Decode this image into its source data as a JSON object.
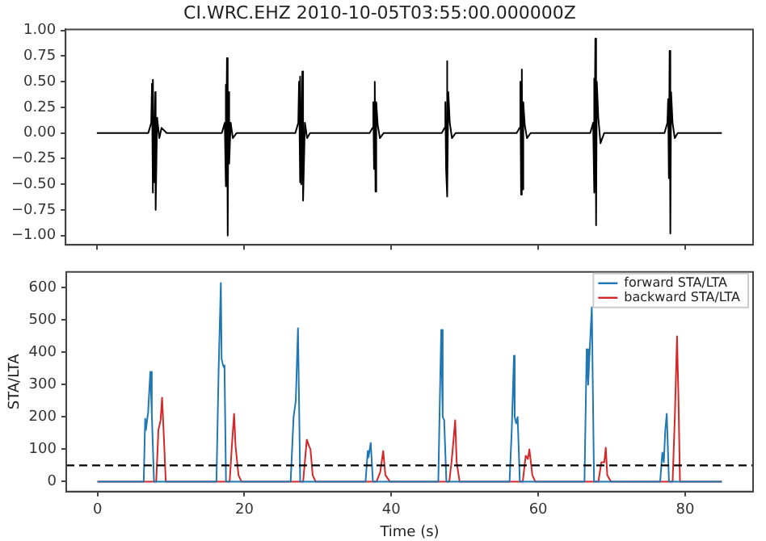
{
  "chart_data": [
    {
      "type": "line",
      "title": "CI.WRC.EHZ 2010-10-05T03:55:00.000000Z",
      "color": "#000000",
      "x": [
        0,
        7.0,
        7.4,
        7.5,
        7.55,
        7.7,
        7.8,
        7.95,
        8.0,
        8.2,
        8.5,
        8.8,
        9.5,
        17.0,
        17.4,
        17.5,
        17.6,
        17.7,
        17.8,
        17.9,
        18.0,
        18.2,
        18.5,
        19.0,
        27.0,
        27.4,
        27.5,
        27.6,
        27.7,
        27.8,
        27.95,
        28.05,
        28.3,
        28.6,
        29.0,
        37.1,
        37.5,
        37.6,
        37.7,
        37.8,
        37.9,
        38.0,
        38.2,
        38.5,
        39.0,
        46.9,
        47.3,
        47.4,
        47.5,
        47.6,
        47.7,
        47.8,
        48.0,
        48.3,
        48.8,
        57.1,
        57.5,
        57.6,
        57.7,
        57.8,
        57.9,
        58.0,
        58.2,
        58.5,
        59.0,
        67.1,
        67.5,
        67.6,
        67.7,
        67.8,
        67.9,
        68.0,
        68.2,
        68.5,
        69.0,
        77.2,
        77.6,
        77.7,
        77.8,
        77.9,
        78.0,
        78.1,
        78.3,
        78.6,
        79.0,
        85
      ],
      "values": [
        0,
        0.0,
        0.1,
        0.48,
        -0.58,
        0.52,
        -0.48,
        0.4,
        -0.75,
        0.15,
        -0.05,
        0.05,
        0.0,
        0.0,
        0.1,
        0.47,
        -0.52,
        0.73,
        -1.0,
        0.4,
        -0.3,
        0.1,
        -0.05,
        0.0,
        0.0,
        0.1,
        0.5,
        -0.48,
        0.55,
        -0.5,
        0.6,
        -0.66,
        0.1,
        -0.05,
        0.0,
        0.0,
        0.05,
        0.3,
        -0.35,
        0.5,
        -0.57,
        0.3,
        0.08,
        -0.05,
        0.0,
        0.0,
        0.05,
        0.3,
        -0.35,
        0.7,
        -0.62,
        0.4,
        0.1,
        -0.05,
        0.0,
        0.0,
        0.05,
        0.5,
        -0.6,
        0.62,
        -0.55,
        0.3,
        0.08,
        -0.05,
        0.0,
        0.0,
        0.1,
        0.53,
        -0.58,
        0.92,
        -0.9,
        0.5,
        0.15,
        -0.1,
        0.0,
        0.0,
        0.1,
        0.33,
        -0.44,
        0.8,
        -0.98,
        0.4,
        0.1,
        -0.05,
        0.0,
        0.0
      ],
      "xlim": [
        -4.25,
        89.25
      ],
      "xticks": [
        0,
        20,
        40,
        60,
        80
      ],
      "ylim": [
        -1.09,
        1.01
      ],
      "yticks": [
        {
          "value": -1,
          "label": "−1.00"
        },
        {
          "value": -0.75,
          "label": "−0.75"
        },
        {
          "value": -0.5,
          "label": "−0.50"
        },
        {
          "value": -0.25,
          "label": "−0.25"
        },
        {
          "value": 0,
          "label": "0.00"
        },
        {
          "value": 0.25,
          "label": "0.25"
        },
        {
          "value": 0.5,
          "label": "0.50"
        },
        {
          "value": 0.75,
          "label": "0.75"
        },
        {
          "value": 1,
          "label": "1.00"
        }
      ],
      "tick_labels": "y",
      "grid": false
    },
    {
      "type": "line",
      "xlabel": "Time (s)",
      "ylabel": "STA/LTA",
      "series": [
        {
          "name": "forward STA/LTA",
          "color": "#1f77b4",
          "x": [
            0,
            6.3,
            6.5,
            6.6,
            6.9,
            7.2,
            7.4,
            7.7,
            16.2,
            16.5,
            16.8,
            16.9,
            17.1,
            17.3,
            17.5,
            26.3,
            26.7,
            27.0,
            27.3,
            27.6,
            36.5,
            36.8,
            36.9,
            37.2,
            37.5,
            46.4,
            46.6,
            46.8,
            47.0,
            47.2,
            47.5,
            56.1,
            56.4,
            56.7,
            56.8,
            57.0,
            57.2,
            57.5,
            66.3,
            66.6,
            66.8,
            67.0,
            67.3,
            67.6,
            76.6,
            76.9,
            77.1,
            77.3,
            77.5,
            77.8,
            85
          ],
          "values": [
            0,
            0,
            195,
            160,
            215,
            340,
            210,
            0,
            0,
            350,
            615,
            380,
            360,
            350,
            0,
            0,
            200,
            250,
            475,
            0,
            0,
            95,
            75,
            120,
            0,
            0,
            240,
            470,
            200,
            190,
            0,
            0,
            160,
            390,
            200,
            180,
            200,
            0,
            0,
            410,
            300,
            400,
            540,
            0,
            0,
            90,
            60,
            160,
            210,
            0,
            0
          ]
        },
        {
          "name": "backward STA/LTA",
          "color": "#d62728",
          "x": [
            0,
            8.0,
            8.3,
            8.6,
            8.8,
            9.0,
            9.3,
            18.0,
            18.3,
            18.6,
            18.8,
            19.2,
            19.6,
            28.0,
            28.5,
            28.8,
            29.0,
            29.3,
            29.7,
            38.0,
            38.5,
            38.9,
            39.2,
            39.8,
            47.9,
            48.2,
            48.4,
            48.7,
            48.9,
            49.3,
            57.9,
            58.3,
            58.6,
            58.8,
            59.2,
            59.6,
            68.2,
            68.6,
            69.0,
            69.2,
            69.4,
            69.9,
            78.3,
            78.6,
            78.9,
            79.1,
            79.3,
            85
          ],
          "values": [
            0,
            0,
            160,
            190,
            260,
            160,
            0,
            0,
            110,
            210,
            110,
            20,
            0,
            0,
            130,
            110,
            100,
            20,
            0,
            0,
            30,
            95,
            20,
            0,
            0,
            60,
            110,
            190,
            60,
            0,
            0,
            80,
            70,
            100,
            20,
            0,
            0,
            60,
            60,
            105,
            20,
            0,
            0,
            200,
            450,
            250,
            0,
            0
          ]
        }
      ],
      "xlim": [
        -4.25,
        89.25
      ],
      "xticks": [
        0,
        20,
        40,
        60,
        80
      ],
      "ylim": [
        -31,
        649
      ],
      "yticks": [
        0,
        100,
        200,
        300,
        400,
        500,
        600
      ],
      "ref_lines": [
        {
          "axis": "y",
          "value": 50,
          "color": "#000000",
          "line_style": "dashed"
        }
      ],
      "legend": "top right",
      "grid": false
    }
  ]
}
